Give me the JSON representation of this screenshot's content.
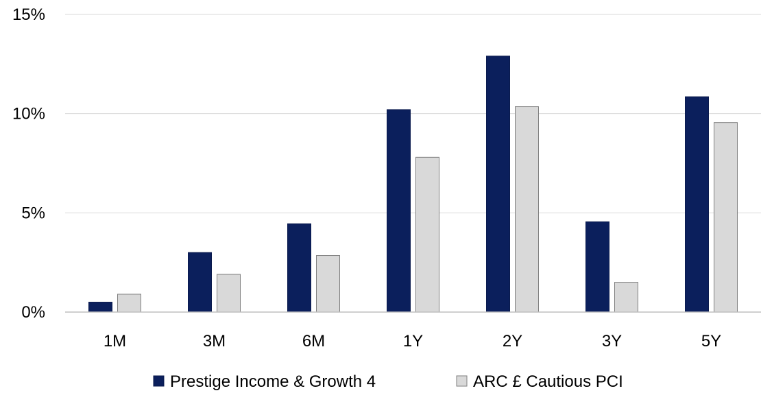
{
  "chart_data": {
    "type": "bar",
    "title": "",
    "xlabel": "",
    "ylabel": "",
    "categories": [
      "1M",
      "3M",
      "6M",
      "1Y",
      "2Y",
      "3Y",
      "5Y"
    ],
    "series": [
      {
        "name": "Prestige Income & Growth 4",
        "color": "#0b1f5c",
        "values": [
          0.5,
          3.0,
          4.45,
          10.2,
          12.9,
          4.55,
          10.85
        ]
      },
      {
        "name": "ARC £ Cautious PCI",
        "color": "#d9d9d9",
        "values": [
          0.9,
          1.9,
          2.85,
          7.8,
          10.35,
          1.5,
          9.55
        ]
      }
    ],
    "ylim": [
      0,
      15
    ],
    "yticks": [
      "0%",
      "5%",
      "10%",
      "15%"
    ],
    "ytick_values": [
      0,
      5,
      10,
      15
    ],
    "grid": true,
    "legend_position": "bottom"
  }
}
